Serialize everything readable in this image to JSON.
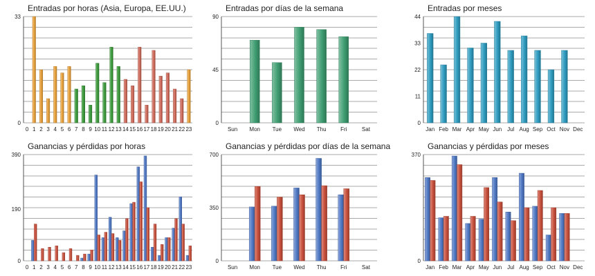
{
  "colors": {
    "orange": "#e8a13a",
    "green": "#3a9a3a",
    "red": "#cf6a5a",
    "teal_green": "#3f9e72",
    "teal_blue": "#2f9cc0",
    "blue": "#4f78c4",
    "red_bar": "#c9503c",
    "grid": "#a9a9a9",
    "text": "#222222"
  },
  "chart_data": [
    {
      "type": "bar",
      "title": "Entradas por horas (Asia, Europa, EE.UU.)",
      "categories": [
        "0",
        "1",
        "2",
        "3",
        "4",
        "5",
        "6",
        "7",
        "8",
        "9",
        "10",
        "11",
        "12",
        "13",
        "14",
        "15",
        "16",
        "17",
        "18",
        "19",
        "20",
        "21",
        "22",
        "23"
      ],
      "yticks": [
        "0",
        "33"
      ],
      "ylim": [
        0,
        33
      ],
      "series": [
        {
          "values": [
            0,
            33,
            16.5,
            7.5,
            17.5,
            15.5,
            17.5,
            10.5,
            11.5,
            5.5,
            18.5,
            12.5,
            23.5,
            17.5,
            13.5,
            11.5,
            23.5,
            5.5,
            22.5,
            14.5,
            15.5,
            10.5,
            7.5,
            16.5
          ],
          "colors": [
            "orange",
            "orange",
            "orange",
            "orange",
            "orange",
            "orange",
            "orange",
            "green",
            "green",
            "green",
            "green",
            "green",
            "green",
            "green",
            "red",
            "red",
            "red",
            "red",
            "red",
            "red",
            "red",
            "red",
            "red",
            "orange"
          ]
        }
      ]
    },
    {
      "type": "bar",
      "title": "Entradas por días de la semana",
      "categories": [
        "Sun",
        "Mon",
        "Tue",
        "Wed",
        "Thu",
        "Fri",
        "Sat"
      ],
      "yticks": [
        "0",
        "45",
        "90"
      ],
      "ylim": [
        0,
        90
      ],
      "series": [
        {
          "values": [
            0,
            70,
            51,
            81,
            79,
            73,
            0
          ],
          "color": "teal_green"
        }
      ]
    },
    {
      "type": "bar",
      "title": "Entradas por meses",
      "categories": [
        "Jan",
        "Feb",
        "Mar",
        "Apr",
        "May",
        "Jun",
        "Jul",
        "Aug",
        "Sep",
        "Oct",
        "Nov",
        "Dec"
      ],
      "yticks": [
        "0",
        "11",
        "22",
        "33",
        "44"
      ],
      "ylim": [
        0,
        44
      ],
      "series": [
        {
          "values": [
            37,
            24,
            44,
            31,
            33,
            42,
            30,
            36,
            30,
            22,
            30,
            0
          ],
          "color": "teal_blue"
        }
      ]
    },
    {
      "type": "bar",
      "title": "Ganancias y pérdidas por horas",
      "categories": [
        "0",
        "1",
        "2",
        "3",
        "4",
        "5",
        "6",
        "7",
        "8",
        "9",
        "10",
        "11",
        "12",
        "13",
        "14",
        "15",
        "16",
        "17",
        "18",
        "19",
        "20",
        "21",
        "22",
        "23"
      ],
      "yticks": [
        "0",
        "190",
        "390"
      ],
      "ylim": [
        0,
        390
      ],
      "series": [
        {
          "values": [
            0,
            75,
            0,
            0,
            0,
            0,
            0,
            0,
            10,
            25,
            315,
            85,
            160,
            85,
            110,
            210,
            345,
            385,
            50,
            20,
            85,
            120,
            235,
            20
          ],
          "color": "blue"
        },
        {
          "values": [
            0,
            135,
            45,
            50,
            55,
            30,
            45,
            20,
            25,
            40,
            95,
            105,
            100,
            75,
            155,
            215,
            290,
            195,
            135,
            60,
            85,
            155,
            135,
            55
          ],
          "color": "red_bar"
        }
      ]
    },
    {
      "type": "bar",
      "title": "Ganancias y pérdidas por días de la semana",
      "categories": [
        "Sun",
        "Mon",
        "Tue",
        "Wed",
        "Thu",
        "Fri",
        "Sat"
      ],
      "yticks": [
        "0",
        "350",
        "700"
      ],
      "ylim": [
        0,
        700
      ],
      "series": [
        {
          "values": [
            0,
            355,
            360,
            480,
            675,
            435,
            0
          ],
          "color": "blue"
        },
        {
          "values": [
            0,
            490,
            420,
            435,
            495,
            475,
            0
          ],
          "color": "red_bar"
        }
      ]
    },
    {
      "type": "bar",
      "title": "Ganancias y pérdidas por meses",
      "categories": [
        "Jan",
        "Feb",
        "Mar",
        "Apr",
        "May",
        "Jun",
        "Jul",
        "Aug",
        "Sep",
        "Oct",
        "Nov",
        "Dec"
      ],
      "yticks": [
        "0",
        "370"
      ],
      "ylim": [
        0,
        370
      ],
      "series": [
        {
          "values": [
            290,
            150,
            365,
            130,
            145,
            290,
            170,
            305,
            190,
            90,
            165,
            0
          ],
          "color": "blue"
        },
        {
          "values": [
            280,
            155,
            335,
            155,
            255,
            205,
            140,
            185,
            245,
            185,
            165,
            0
          ],
          "color": "red_bar"
        }
      ]
    }
  ]
}
